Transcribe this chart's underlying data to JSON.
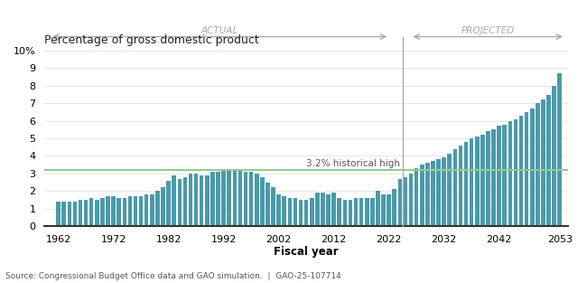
{
  "title": "Percentage of gross domestic product",
  "xlabel": "Fiscal year",
  "source": "Source: Congressional Budget Office data and GAO simulation.  |  GAO-25-107714",
  "historical_high_label": "3.2% historical high",
  "historical_high_value": 3.2,
  "actual_label": "ACTUAL",
  "projected_label": "PROJECTED",
  "split_year": 2024,
  "bar_color_actual": "#4a9aaa",
  "bar_color_projected": "#4a9aaa",
  "historical_line_color": "#90cc90",
  "background_color": "#ffffff",
  "ylim": [
    0,
    10
  ],
  "yticks": [
    0,
    1,
    2,
    3,
    4,
    5,
    6,
    7,
    8,
    9,
    10
  ],
  "ytick_labels": [
    "0",
    "1",
    "2",
    "3",
    "4",
    "5",
    "6",
    "7",
    "8",
    "9",
    "10%"
  ],
  "years": [
    1962,
    1963,
    1964,
    1965,
    1966,
    1967,
    1968,
    1969,
    1970,
    1971,
    1972,
    1973,
    1974,
    1975,
    1976,
    1977,
    1978,
    1979,
    1980,
    1981,
    1982,
    1983,
    1984,
    1985,
    1986,
    1987,
    1988,
    1989,
    1990,
    1991,
    1992,
    1993,
    1994,
    1995,
    1996,
    1997,
    1998,
    1999,
    2000,
    2001,
    2002,
    2003,
    2004,
    2005,
    2006,
    2007,
    2008,
    2009,
    2010,
    2011,
    2012,
    2013,
    2014,
    2015,
    2016,
    2017,
    2018,
    2019,
    2020,
    2021,
    2022,
    2023,
    2024,
    2025,
    2026,
    2027,
    2028,
    2029,
    2030,
    2031,
    2032,
    2033,
    2034,
    2035,
    2036,
    2037,
    2038,
    2039,
    2040,
    2041,
    2042,
    2043,
    2044,
    2045,
    2046,
    2047,
    2048,
    2049,
    2050,
    2051,
    2052,
    2053
  ],
  "values": [
    1.4,
    1.4,
    1.4,
    1.4,
    1.5,
    1.5,
    1.6,
    1.5,
    1.6,
    1.7,
    1.7,
    1.6,
    1.6,
    1.7,
    1.7,
    1.7,
    1.8,
    1.8,
    2.0,
    2.2,
    2.6,
    2.9,
    2.7,
    2.8,
    3.0,
    3.0,
    2.9,
    2.9,
    3.1,
    3.1,
    3.2,
    3.2,
    3.2,
    3.2,
    3.1,
    3.1,
    3.0,
    2.8,
    2.5,
    2.2,
    1.8,
    1.7,
    1.6,
    1.6,
    1.5,
    1.5,
    1.6,
    1.9,
    1.9,
    1.8,
    1.9,
    1.6,
    1.5,
    1.5,
    1.6,
    1.6,
    1.6,
    1.6,
    2.0,
    1.8,
    1.8,
    2.1,
    2.7,
    2.8,
    3.0,
    3.3,
    3.5,
    3.6,
    3.7,
    3.8,
    3.9,
    4.1,
    4.4,
    4.6,
    4.8,
    5.0,
    5.1,
    5.2,
    5.4,
    5.5,
    5.7,
    5.8,
    6.0,
    6.1,
    6.3,
    6.5,
    6.7,
    7.0,
    7.2,
    7.5,
    8.0,
    8.7
  ]
}
